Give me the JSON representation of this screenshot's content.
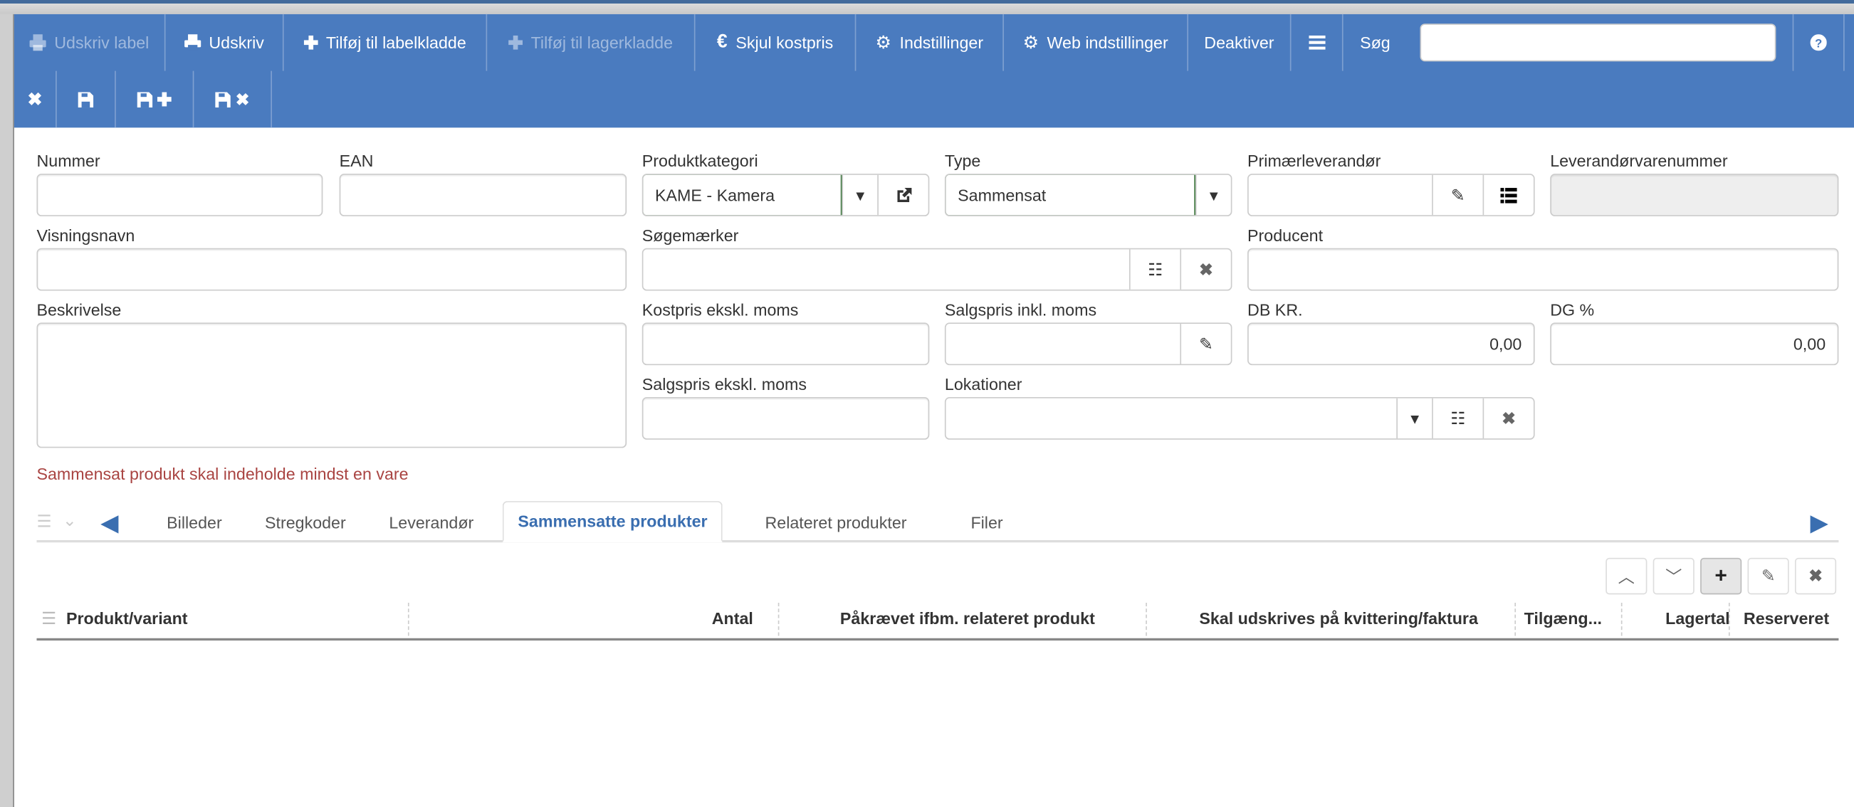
{
  "toolbar": {
    "row1": [
      {
        "label": "Udskriv label",
        "icon": "print-icon",
        "enabled": false
      },
      {
        "label": "Udskriv",
        "icon": "print-icon",
        "enabled": true
      },
      {
        "label": "Tilføj til labelkladde",
        "icon": "plus-icon",
        "enabled": true
      },
      {
        "label": "Tilføj til lagerkladde",
        "icon": "plus-icon",
        "enabled": false
      },
      {
        "label": "Skjul kostpris",
        "icon": "euro-icon",
        "enabled": true
      },
      {
        "label": "Indstillinger",
        "icon": "gear-icon",
        "enabled": true
      },
      {
        "label": "Web indstillinger",
        "icon": "gear-icon",
        "enabled": true
      },
      {
        "label": "Deaktiver",
        "enabled": true
      }
    ],
    "menu_icon": "hamburger-icon",
    "search_label": "Søg",
    "search_value": "",
    "help_icon": "question-circle-icon",
    "row2_icons": [
      "close-icon",
      "save-icon",
      "save-plus-icon",
      "save-close-icon"
    ],
    "background": "#4a7bbf"
  },
  "form": {
    "nummer": {
      "label": "Nummer",
      "value": ""
    },
    "ean": {
      "label": "EAN",
      "value": ""
    },
    "produktkategori": {
      "label": "Produktkategori",
      "value": "KAME - Kamera"
    },
    "type": {
      "label": "Type",
      "value": "Sammensat"
    },
    "primaerleverandor": {
      "label": "Primærleverandør",
      "value": ""
    },
    "leverandorvarenummer": {
      "label": "Leverandørvarenummer",
      "value": ""
    },
    "visningsnavn": {
      "label": "Visningsnavn",
      "value": ""
    },
    "sogemaerker": {
      "label": "Søgemærker",
      "value": ""
    },
    "producent": {
      "label": "Producent",
      "value": ""
    },
    "beskrivelse": {
      "label": "Beskrivelse",
      "value": ""
    },
    "kostpris": {
      "label": "Kostpris ekskl. moms",
      "value": ""
    },
    "salgspris_inkl": {
      "label": "Salgspris inkl. moms",
      "value": ""
    },
    "db_kr": {
      "label": "DB KR.",
      "value": "0,00"
    },
    "dg_pct": {
      "label": "DG %",
      "value": "0,00"
    },
    "salgspris_ekskl": {
      "label": "Salgspris ekskl. moms",
      "value": ""
    },
    "lokationer": {
      "label": "Lokationer",
      "value": ""
    }
  },
  "error_message": "Sammensat produkt skal indeholde mindst en vare",
  "error_color": "#a94442",
  "tabs": [
    {
      "label": "Billeder",
      "active": false
    },
    {
      "label": "Stregkoder",
      "active": false
    },
    {
      "label": "Leverandør",
      "active": false
    },
    {
      "label": "Sammensatte produkter",
      "active": true
    },
    {
      "label": "Relateret produkter",
      "active": false
    },
    {
      "label": "Filer",
      "active": false
    }
  ],
  "grid": {
    "buttons": [
      "chevron-up-icon",
      "chevron-down-icon",
      "plus-icon",
      "edit-icon",
      "close-icon"
    ],
    "columns": [
      "Produkt/variant",
      "Antal",
      "Påkrævet ifbm. relateret produkt",
      "Skal udskrives på kvittering/faktura",
      "Tilgæng...",
      "Lagertal",
      "Reserveret"
    ],
    "rows": []
  }
}
